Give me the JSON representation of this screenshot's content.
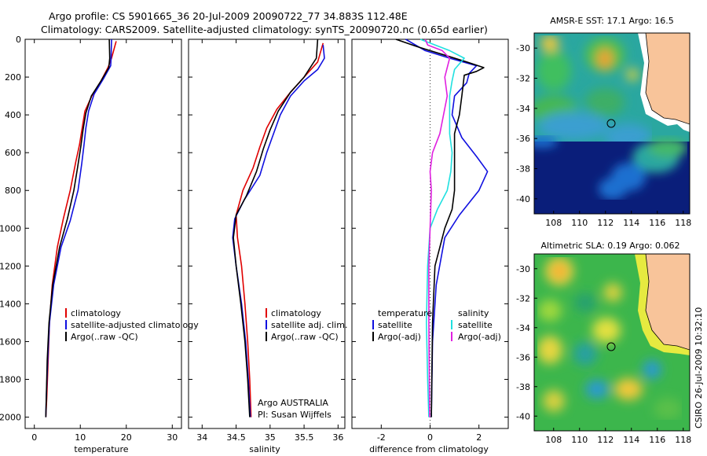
{
  "header": {
    "line1": "Argo profile: CS 5901665_36 20-Jul-2009 20090722_77 34.883S 112.48E",
    "line2": "Climatology: CARS2009. Satellite-adjusted climatology: synTS_20090720.nc (0.65d earlier)"
  },
  "colors": {
    "climatology": "#e00000",
    "satellite": "#1010e0",
    "argo": "#000000",
    "sat_diff": "#20e0e0",
    "argo_adj_diff": "#e020e0"
  },
  "chart_data": [
    {
      "type": "line",
      "xlabel": "temperature",
      "xlim": [
        -2,
        32
      ],
      "xticks": [
        "0",
        "10",
        "20",
        "30"
      ],
      "ylim": [
        0,
        2060
      ],
      "yticks": [
        "0",
        "200",
        "400",
        "600",
        "800",
        "1000",
        "1200",
        "1400",
        "1600",
        "1800",
        "2000"
      ],
      "legend": [
        "climatology",
        "satellite-adjusted climatology",
        "Argo(..raw -QC)"
      ],
      "series": [
        {
          "name": "climatology",
          "color": "#e00000",
          "points": [
            [
              17.8,
              10
            ],
            [
              16.8,
              100
            ],
            [
              16,
              150
            ],
            [
              14.5,
              220
            ],
            [
              12.5,
              300
            ],
            [
              11,
              380
            ],
            [
              10.4,
              470
            ],
            [
              9.8,
              560
            ],
            [
              9,
              650
            ],
            [
              7.8,
              800
            ],
            [
              6.3,
              950
            ],
            [
              5,
              1100
            ],
            [
              3.9,
              1300
            ],
            [
              3.3,
              1500
            ],
            [
              3,
              1700
            ],
            [
              2.7,
              1900
            ],
            [
              2.5,
              2000
            ]
          ]
        },
        {
          "name": "satellite-adjusted climatology",
          "color": "#1010e0",
          "points": [
            [
              16.8,
              0
            ],
            [
              16.7,
              100
            ],
            [
              16.6,
              140
            ],
            [
              15,
              210
            ],
            [
              13,
              290
            ],
            [
              11.8,
              380
            ],
            [
              11.2,
              470
            ],
            [
              10.8,
              560
            ],
            [
              10.3,
              660
            ],
            [
              9.5,
              800
            ],
            [
              7.8,
              960
            ],
            [
              5.8,
              1100
            ],
            [
              4.2,
              1300
            ],
            [
              3.3,
              1500
            ],
            [
              2.9,
              1700
            ],
            [
              2.6,
              1900
            ],
            [
              2.5,
              2000
            ]
          ]
        },
        {
          "name": "Argo(..raw -QC)",
          "color": "#000000",
          "points": [
            [
              16.3,
              0
            ],
            [
              16.4,
              100
            ],
            [
              16.2,
              150
            ],
            [
              14.5,
              220
            ],
            [
              12.4,
              300
            ],
            [
              11.2,
              390
            ],
            [
              10.6,
              480
            ],
            [
              10.1,
              570
            ],
            [
              9.4,
              680
            ],
            [
              8.6,
              800
            ],
            [
              7.2,
              950
            ],
            [
              5.5,
              1100
            ],
            [
              4,
              1300
            ],
            [
              3.2,
              1500
            ],
            [
              2.8,
              1700
            ],
            [
              2.6,
              1900
            ],
            [
              2.5,
              2000
            ]
          ]
        }
      ]
    },
    {
      "type": "line",
      "xlabel": "salinity",
      "xlim": [
        33.8,
        36.1
      ],
      "xticks": [
        "34",
        "34.5",
        "35",
        "35.5",
        "36"
      ],
      "ylim": [
        0,
        2060
      ],
      "legend": [
        "climatology",
        "satellite adj. clim.",
        "Argo(..raw -QC)"
      ],
      "annotation": [
        "Argo AUSTRALIA",
        "PI: Susan Wijffels"
      ],
      "series": [
        {
          "name": "climatology",
          "color": "#e00000",
          "points": [
            [
              35.78,
              20
            ],
            [
              35.7,
              120
            ],
            [
              35.5,
              200
            ],
            [
              35.3,
              280
            ],
            [
              35.1,
              370
            ],
            [
              34.95,
              470
            ],
            [
              34.85,
              570
            ],
            [
              34.75,
              680
            ],
            [
              34.6,
              800
            ],
            [
              34.5,
              930
            ],
            [
              34.52,
              1050
            ],
            [
              34.58,
              1200
            ],
            [
              34.63,
              1400
            ],
            [
              34.67,
              1600
            ],
            [
              34.7,
              1800
            ],
            [
              34.72,
              2000
            ]
          ]
        },
        {
          "name": "satellite adj. clim.",
          "color": "#1010e0",
          "points": [
            [
              35.78,
              30
            ],
            [
              35.8,
              100
            ],
            [
              35.7,
              160
            ],
            [
              35.5,
              220
            ],
            [
              35.3,
              300
            ],
            [
              35.15,
              400
            ],
            [
              35.05,
              500
            ],
            [
              34.95,
              600
            ],
            [
              34.85,
              720
            ],
            [
              34.62,
              850
            ],
            [
              34.48,
              950
            ],
            [
              34.45,
              1050
            ],
            [
              34.5,
              1200
            ],
            [
              34.58,
              1400
            ],
            [
              34.64,
              1600
            ],
            [
              34.68,
              1800
            ],
            [
              34.71,
              2000
            ]
          ]
        },
        {
          "name": "Argo(..raw -QC)",
          "color": "#000000",
          "points": [
            [
              35.7,
              0
            ],
            [
              35.68,
              100
            ],
            [
              35.5,
              200
            ],
            [
              35.3,
              280
            ],
            [
              35.12,
              380
            ],
            [
              35.0,
              480
            ],
            [
              34.9,
              580
            ],
            [
              34.8,
              700
            ],
            [
              34.65,
              830
            ],
            [
              34.5,
              930
            ],
            [
              34.46,
              1050
            ],
            [
              34.5,
              1200
            ],
            [
              34.57,
              1400
            ],
            [
              34.63,
              1600
            ],
            [
              34.67,
              1800
            ],
            [
              34.7,
              2000
            ]
          ]
        }
      ]
    },
    {
      "type": "line",
      "xlabel": "difference from climatology",
      "xlim": [
        -3.2,
        3.2
      ],
      "xticks": [
        "-2",
        "0",
        "2"
      ],
      "ylim": [
        0,
        2060
      ],
      "legend_headers": [
        "temperature",
        "salinity"
      ],
      "legend": [
        "satellite",
        "Argo(-adj)",
        "satellite",
        "Argo(-adj)"
      ],
      "series": [
        {
          "name": "temperature satellite",
          "color": "#1010e0",
          "points": [
            [
              -1.0,
              0
            ],
            [
              -0.2,
              60
            ],
            [
              0.8,
              100
            ],
            [
              1.9,
              140
            ],
            [
              1.6,
              180
            ],
            [
              1.5,
              230
            ],
            [
              1.0,
              300
            ],
            [
              0.9,
              400
            ],
            [
              1.3,
              520
            ],
            [
              1.9,
              620
            ],
            [
              2.35,
              700
            ],
            [
              2.0,
              800
            ],
            [
              1.2,
              930
            ],
            [
              0.6,
              1050
            ],
            [
              0.25,
              1300
            ],
            [
              0.1,
              1600
            ],
            [
              0.05,
              2000
            ]
          ]
        },
        {
          "name": "temperature Argo(-adj)",
          "color": "#000000",
          "points": [
            [
              -1.4,
              0
            ],
            [
              -0.5,
              40
            ],
            [
              0.5,
              80
            ],
            [
              1.5,
              120
            ],
            [
              2.2,
              150
            ],
            [
              1.9,
              170
            ],
            [
              1.4,
              190
            ],
            [
              1.3,
              300
            ],
            [
              1.2,
              400
            ],
            [
              1.0,
              500
            ],
            [
              1.0,
              600
            ],
            [
              1.0,
              700
            ],
            [
              1.0,
              800
            ],
            [
              0.9,
              900
            ],
            [
              0.6,
              1000
            ],
            [
              0.2,
              1200
            ],
            [
              0.1,
              1500
            ],
            [
              0.05,
              2000
            ]
          ]
        },
        {
          "name": "salinity satellite",
          "color": "#20e0e0",
          "points": [
            [
              -0.4,
              0
            ],
            [
              0.8,
              60
            ],
            [
              1.4,
              100
            ],
            [
              1.0,
              160
            ],
            [
              0.9,
              220
            ],
            [
              0.8,
              300
            ],
            [
              0.8,
              400
            ],
            [
              0.8,
              500
            ],
            [
              0.9,
              600
            ],
            [
              0.85,
              700
            ],
            [
              0.7,
              800
            ],
            [
              0.3,
              900
            ],
            [
              0.0,
              1000
            ],
            [
              -0.1,
              1200
            ],
            [
              -0.15,
              1500
            ],
            [
              -0.1,
              1800
            ],
            [
              -0.05,
              2000
            ]
          ]
        },
        {
          "name": "salinity Argo(-adj)",
          "color": "#e020e0",
          "points": [
            [
              -0.2,
              0
            ],
            [
              -0.1,
              30
            ],
            [
              0.5,
              60
            ],
            [
              0.8,
              100
            ],
            [
              0.7,
              150
            ],
            [
              0.6,
              200
            ],
            [
              0.7,
              300
            ],
            [
              0.4,
              500
            ],
            [
              0.1,
              600
            ],
            [
              0.0,
              700
            ],
            [
              0.05,
              800
            ],
            [
              0.0,
              1000
            ],
            [
              -0.05,
              1200
            ],
            [
              -0.05,
              1500
            ],
            [
              -0.02,
              2000
            ]
          ]
        }
      ]
    },
    {
      "type": "heatmap",
      "title": "AMSR-E SST: 17.1 Argo: 16.5",
      "xlim": [
        106.5,
        118.5
      ],
      "ylim": [
        -41,
        -29
      ],
      "xticks": [
        "108",
        "110",
        "112",
        "114",
        "116",
        "118"
      ],
      "yticks": [
        "-30",
        "-32",
        "-34",
        "-36",
        "-38",
        "-40"
      ],
      "marker": {
        "lon": 112.48,
        "lat": -34.883
      }
    },
    {
      "type": "heatmap",
      "title": "Altimetric SLA: 0.19 Argo: 0.062",
      "xlim": [
        106.5,
        118.5
      ],
      "ylim": [
        -41,
        -29
      ],
      "xticks": [
        "108",
        "110",
        "112",
        "114",
        "116",
        "118"
      ],
      "yticks": [
        "-30",
        "-32",
        "-34",
        "-36",
        "-38",
        "-40"
      ],
      "marker": {
        "lon": 112.48,
        "lat": -34.883
      }
    }
  ],
  "footer": {
    "side_label": "CSIRO 26-Jul-2009 10:32:10"
  }
}
